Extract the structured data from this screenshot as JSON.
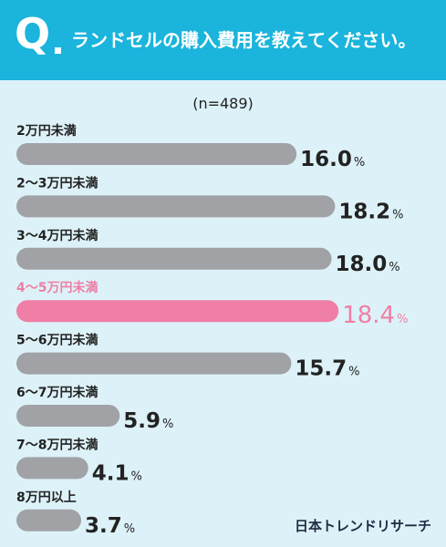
{
  "header": {
    "q_letter": "Q",
    "title": "ランドセルの購入費用を教えてください。"
  },
  "sample_size": "(n=489)",
  "brand": "日本トレンドリサーチ",
  "colors": {
    "header": "#1ab4dc",
    "background": "#ddf2f8",
    "bar": "#a0a2a6",
    "highlight": "#ef7fa6",
    "text": "#222222"
  },
  "chart_data": {
    "type": "bar",
    "orientation": "horizontal",
    "categories": [
      "2万円未満",
      "2～3万円未満",
      "3～4万円未満",
      "4～5万円未満",
      "5～6万円未満",
      "6～7万円未満",
      "7～8万円未満",
      "8万円以上"
    ],
    "values": [
      16.0,
      18.2,
      18.0,
      18.4,
      15.7,
      5.9,
      4.1,
      3.7
    ],
    "value_labels": [
      "16.0",
      "18.2",
      "18.0",
      "18.4",
      "15.7",
      "5.9",
      "4.1",
      "3.7"
    ],
    "unit": "%",
    "highlight_index": 3,
    "xlim": [
      0,
      19.17
    ]
  }
}
